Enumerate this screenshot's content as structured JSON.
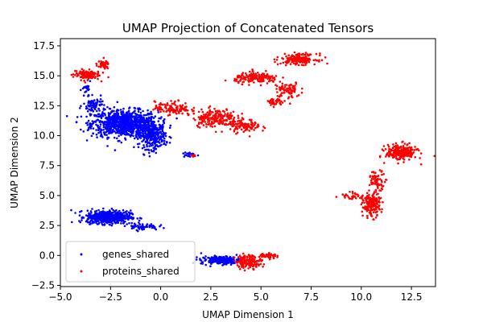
{
  "chart_data": {
    "type": "scatter",
    "title": "UMAP Projection of Concatenated Tensors",
    "xlabel": "UMAP Dimension 1",
    "ylabel": "UMAP Dimension 2",
    "xlim": [
      -5.0,
      13.7
    ],
    "ylim": [
      -2.6,
      18.1
    ],
    "xticks": [
      -5.0,
      -2.5,
      0.0,
      2.5,
      5.0,
      7.5,
      10.0,
      12.5
    ],
    "xtick_labels": [
      "−5.0",
      "−2.5",
      "0.0",
      "2.5",
      "5.0",
      "7.5",
      "10.0",
      "12.5"
    ],
    "yticks": [
      -2.5,
      0.0,
      2.5,
      5.0,
      7.5,
      10.0,
      12.5,
      15.0,
      17.5
    ],
    "ytick_labels": [
      "−2.5",
      "0.0",
      "2.5",
      "5.0",
      "7.5",
      "10.0",
      "12.5",
      "15.0",
      "17.5"
    ],
    "grid": false,
    "legend_position": "lower-left",
    "series": [
      {
        "name": "genes_shared",
        "color": "#0000ff",
        "clusters": [
          {
            "cx": -1.8,
            "cy": 11.0,
            "sx": 1.5,
            "sy": 1.0,
            "n": 900
          },
          {
            "cx": -0.4,
            "cy": 10.0,
            "sx": 0.6,
            "sy": 1.0,
            "n": 300
          },
          {
            "cx": -3.3,
            "cy": 12.5,
            "sx": 0.5,
            "sy": 0.6,
            "n": 80
          },
          {
            "cx": -3.7,
            "cy": 13.8,
            "sx": 0.2,
            "sy": 0.6,
            "n": 25
          },
          {
            "cx": -2.6,
            "cy": 3.2,
            "sx": 1.0,
            "sy": 0.5,
            "n": 550
          },
          {
            "cx": -0.9,
            "cy": 2.4,
            "sx": 0.7,
            "sy": 0.25,
            "n": 60
          },
          {
            "cx": 3.0,
            "cy": -0.4,
            "sx": 0.9,
            "sy": 0.3,
            "n": 220
          },
          {
            "cx": 1.4,
            "cy": 8.4,
            "sx": 0.3,
            "sy": 0.2,
            "n": 20
          }
        ]
      },
      {
        "name": "proteins_shared",
        "color": "#ff0000",
        "clusters": [
          {
            "cx": -3.7,
            "cy": 15.1,
            "sx": 0.6,
            "sy": 0.4,
            "n": 120
          },
          {
            "cx": -2.9,
            "cy": 15.9,
            "sx": 0.3,
            "sy": 0.3,
            "n": 40
          },
          {
            "cx": 0.6,
            "cy": 12.3,
            "sx": 0.8,
            "sy": 0.5,
            "n": 120
          },
          {
            "cx": 2.7,
            "cy": 11.5,
            "sx": 1.0,
            "sy": 0.7,
            "n": 200
          },
          {
            "cx": 4.2,
            "cy": 10.8,
            "sx": 0.7,
            "sy": 0.5,
            "n": 100
          },
          {
            "cx": 4.8,
            "cy": 14.8,
            "sx": 1.0,
            "sy": 0.4,
            "n": 160
          },
          {
            "cx": 6.3,
            "cy": 13.8,
            "sx": 0.6,
            "sy": 0.6,
            "n": 80
          },
          {
            "cx": 6.9,
            "cy": 16.4,
            "sx": 0.8,
            "sy": 0.4,
            "n": 180
          },
          {
            "cx": 5.7,
            "cy": 12.8,
            "sx": 0.5,
            "sy": 0.3,
            "n": 40
          },
          {
            "cx": 12.0,
            "cy": 8.6,
            "sx": 0.7,
            "sy": 0.6,
            "n": 220
          },
          {
            "cx": 10.5,
            "cy": 4.2,
            "sx": 0.4,
            "sy": 0.9,
            "n": 180
          },
          {
            "cx": 10.8,
            "cy": 6.3,
            "sx": 0.4,
            "sy": 0.7,
            "n": 70
          },
          {
            "cx": 9.6,
            "cy": 5.0,
            "sx": 0.6,
            "sy": 0.3,
            "n": 35
          },
          {
            "cx": 4.4,
            "cy": -0.5,
            "sx": 0.6,
            "sy": 0.5,
            "n": 160
          },
          {
            "cx": 5.4,
            "cy": 0.0,
            "sx": 0.4,
            "sy": 0.2,
            "n": 50
          },
          {
            "cx": 1.6,
            "cy": 8.3,
            "sx": 0.1,
            "sy": 0.1,
            "n": 8
          }
        ]
      }
    ]
  }
}
